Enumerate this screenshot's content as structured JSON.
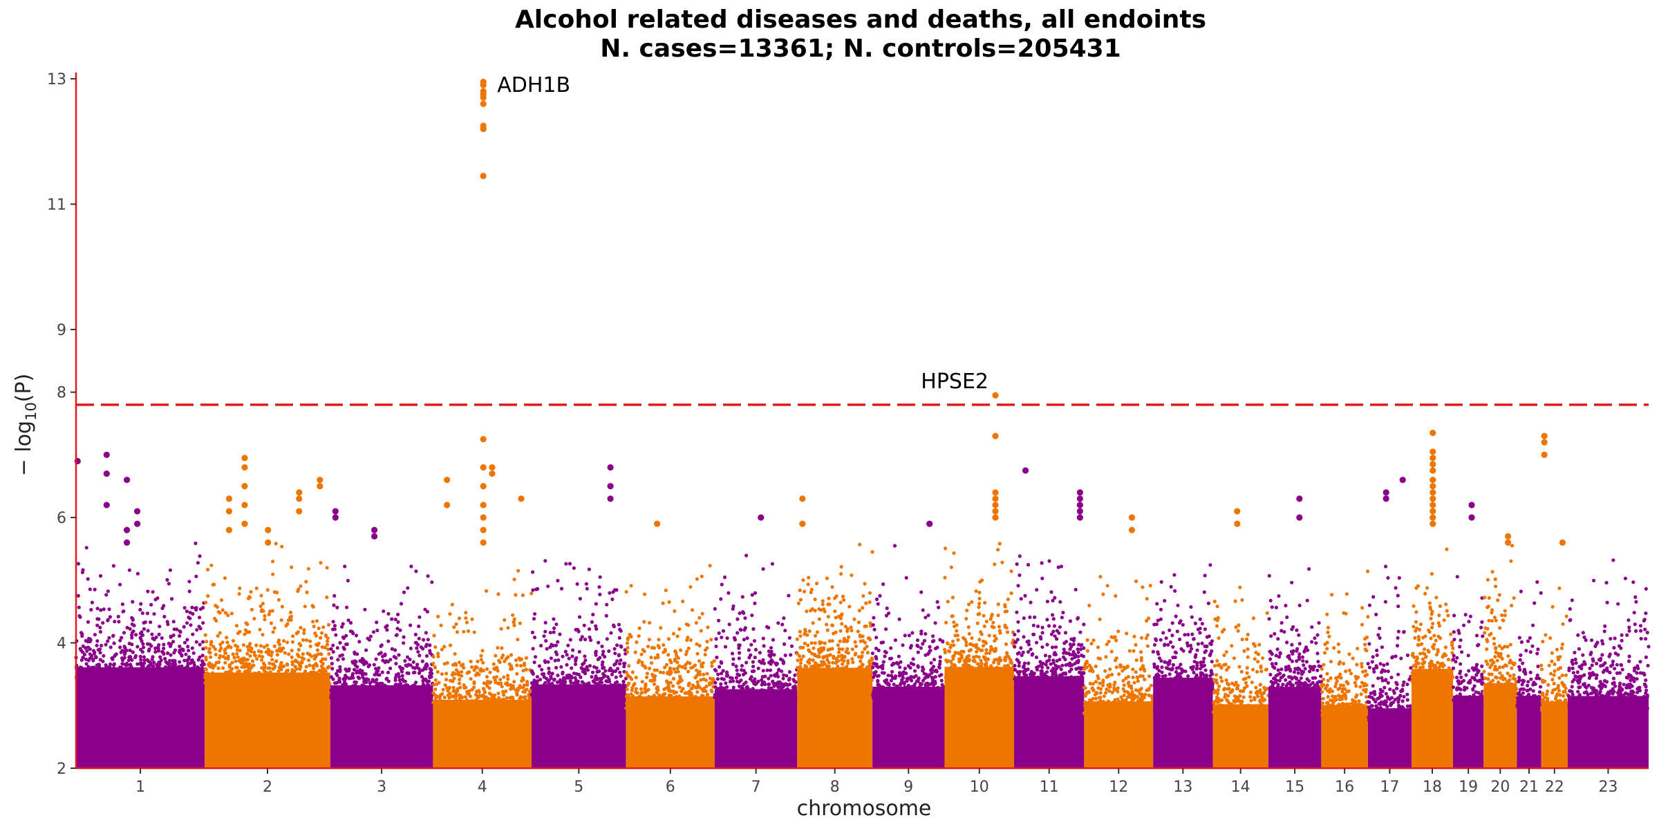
{
  "chart_data": {
    "type": "scatter",
    "title": "Alcohol related diseases and deaths, all endoints",
    "subtitle": "N. cases=13361; N. controls=205431",
    "xlabel": "chromosome",
    "ylabel": "−log10(P)",
    "ylabel_parts": {
      "prefix": "− log",
      "subscript": "10",
      "suffix": "(P)"
    },
    "ylim": [
      2,
      13.1
    ],
    "yticks": [
      2,
      4,
      6,
      8,
      9,
      11,
      13
    ],
    "threshold": 7.8,
    "grid": false,
    "colors": {
      "odd": "#8b008b",
      "even": "#ee7600",
      "axis": "#e31a1c",
      "threshold": "#e31a1c"
    },
    "chromosomes": [
      {
        "label": "1",
        "start": 0,
        "end": 248
      },
      {
        "label": "2",
        "start": 248,
        "end": 490
      },
      {
        "label": "3",
        "start": 490,
        "end": 688
      },
      {
        "label": "4",
        "start": 688,
        "end": 878
      },
      {
        "label": "5",
        "start": 878,
        "end": 1060
      },
      {
        "label": "6",
        "start": 1060,
        "end": 1231
      },
      {
        "label": "7",
        "start": 1231,
        "end": 1390
      },
      {
        "label": "8",
        "start": 1390,
        "end": 1535
      },
      {
        "label": "9",
        "start": 1535,
        "end": 1674
      },
      {
        "label": "10",
        "start": 1674,
        "end": 1808
      },
      {
        "label": "11",
        "start": 1808,
        "end": 1943
      },
      {
        "label": "12",
        "start": 1943,
        "end": 2076
      },
      {
        "label": "13",
        "start": 2076,
        "end": 2191
      },
      {
        "label": "14",
        "start": 2191,
        "end": 2298
      },
      {
        "label": "15",
        "start": 2298,
        "end": 2400
      },
      {
        "label": "16",
        "start": 2400,
        "end": 2490
      },
      {
        "label": "17",
        "start": 2490,
        "end": 2574
      },
      {
        "label": "18",
        "start": 2574,
        "end": 2654
      },
      {
        "label": "19",
        "start": 2654,
        "end": 2713
      },
      {
        "label": "20",
        "start": 2713,
        "end": 2777
      },
      {
        "label": "21",
        "start": 2777,
        "end": 2824
      },
      {
        "label": "22",
        "start": 2824,
        "end": 2875
      },
      {
        "label": "23",
        "start": 2875,
        "end": 3031
      }
    ],
    "peaks": [
      {
        "chrom": "1",
        "pos": 3,
        "values": [
          6.9
        ]
      },
      {
        "chrom": "1",
        "pos": 59,
        "values": [
          6.2,
          7.0,
          6.7
        ]
      },
      {
        "chrom": "1",
        "pos": 98,
        "values": [
          5.6,
          5.8,
          6.6
        ]
      },
      {
        "chrom": "1",
        "pos": 118,
        "values": [
          6.1,
          5.9
        ]
      },
      {
        "chrom": "2",
        "pos": 295,
        "values": [
          5.8,
          6.1,
          6.3
        ]
      },
      {
        "chrom": "2",
        "pos": 325,
        "values": [
          5.9,
          6.2,
          6.5,
          6.8,
          6.95
        ]
      },
      {
        "chrom": "2",
        "pos": 370,
        "values": [
          5.6,
          5.8
        ]
      },
      {
        "chrom": "2",
        "pos": 430,
        "values": [
          6.1,
          6.3,
          6.4
        ]
      },
      {
        "chrom": "2",
        "pos": 470,
        "values": [
          6.5,
          6.6
        ]
      },
      {
        "chrom": "3",
        "pos": 500,
        "values": [
          6.0,
          6.1
        ]
      },
      {
        "chrom": "3",
        "pos": 575,
        "values": [
          5.8,
          5.7
        ]
      },
      {
        "chrom": "4",
        "pos": 715,
        "values": [
          6.6,
          6.2
        ]
      },
      {
        "chrom": "4",
        "pos": 785,
        "values": [
          11.45,
          12.2,
          12.25,
          12.6,
          12.7,
          12.75,
          12.8,
          12.9,
          12.95,
          7.25,
          6.8,
          6.5,
          6.2,
          6.0,
          5.8,
          5.6
        ]
      },
      {
        "chrom": "4",
        "pos": 802,
        "values": [
          6.7,
          6.8
        ]
      },
      {
        "chrom": "4",
        "pos": 858,
        "values": [
          6.3
        ]
      },
      {
        "chrom": "5",
        "pos": 1030,
        "values": [
          6.8,
          6.5,
          6.3
        ]
      },
      {
        "chrom": "6",
        "pos": 1120,
        "values": [
          5.9
        ]
      },
      {
        "chrom": "7",
        "pos": 1320,
        "values": [
          6.0
        ]
      },
      {
        "chrom": "8",
        "pos": 1400,
        "values": [
          6.3,
          5.9
        ]
      },
      {
        "chrom": "9",
        "pos": 1645,
        "values": [
          5.9
        ]
      },
      {
        "chrom": "10",
        "pos": 1772,
        "values": [
          7.95,
          7.3,
          6.4,
          6.3,
          6.2,
          6.1,
          6.0
        ]
      },
      {
        "chrom": "11",
        "pos": 1830,
        "values": [
          6.75
        ]
      },
      {
        "chrom": "11",
        "pos": 1935,
        "values": [
          6.4,
          6.3,
          6.2,
          6.1,
          6.0
        ]
      },
      {
        "chrom": "12",
        "pos": 2035,
        "values": [
          6.0,
          5.8
        ]
      },
      {
        "chrom": "14",
        "pos": 2238,
        "values": [
          6.1,
          5.9
        ]
      },
      {
        "chrom": "15",
        "pos": 2358,
        "values": [
          6.3,
          6.0
        ]
      },
      {
        "chrom": "17",
        "pos": 2525,
        "values": [
          6.4,
          6.3
        ]
      },
      {
        "chrom": "17",
        "pos": 2557,
        "values": [
          6.6
        ]
      },
      {
        "chrom": "18",
        "pos": 2615,
        "values": [
          7.35,
          7.05,
          6.95,
          6.85,
          6.75,
          6.6,
          6.5,
          6.4,
          6.3,
          6.2,
          6.1,
          6.0,
          5.9
        ]
      },
      {
        "chrom": "19",
        "pos": 2690,
        "values": [
          6.2,
          6.0
        ]
      },
      {
        "chrom": "20",
        "pos": 2760,
        "values": [
          5.7,
          5.6
        ]
      },
      {
        "chrom": "22",
        "pos": 2830,
        "values": [
          7.3,
          7.2,
          7.0
        ]
      },
      {
        "chrom": "22",
        "pos": 2865,
        "values": [
          5.6
        ]
      }
    ],
    "annotations": [
      {
        "label": "ADH1B",
        "chrom": "4",
        "pos": 785,
        "value": 12.9
      },
      {
        "label": "HPSE2",
        "chrom": "10",
        "pos": 1772,
        "value": 7.95
      }
    ]
  }
}
